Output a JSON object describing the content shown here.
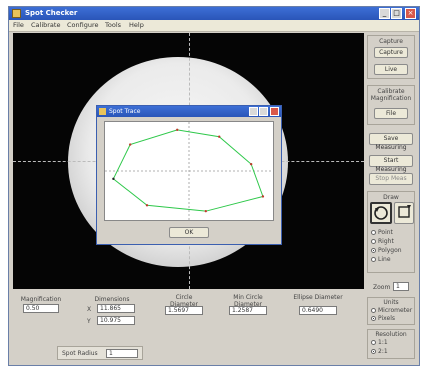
{
  "window": {
    "title": "Spot Checker"
  },
  "menu": [
    "File",
    "Calibrate",
    "Configure",
    "Tools",
    "Help"
  ],
  "dialog": {
    "title": "Spot Trace",
    "ok_label": "OK"
  },
  "polygon_series": {
    "name": "",
    "points": [
      [
        0.05,
        0.58
      ],
      [
        0.15,
        0.23
      ],
      [
        0.43,
        0.08
      ],
      [
        0.68,
        0.15
      ],
      [
        0.87,
        0.43
      ],
      [
        0.94,
        0.76
      ],
      [
        0.6,
        0.91
      ],
      [
        0.25,
        0.85
      ]
    ]
  },
  "right_panel": {
    "capture_label": "Capture",
    "capture_btn": "Capture",
    "live_btn": "Live",
    "calibrate_label": "Calibrate Magnification",
    "file_btn": "File",
    "save_measuring_btn": "Save Measuring",
    "start_measuring_btn": "Start Measuring",
    "stop_btn": "Stop Meas",
    "shape_label": "Draw",
    "radio_options": [
      "Point",
      "Right",
      "Polygon",
      "Line"
    ],
    "radio_selected": 2,
    "zoom_label": "Zoom",
    "zoom_value": "1",
    "units_label": "Units",
    "units_options": [
      "Micrometer",
      "Pixels"
    ],
    "units_selected": 1,
    "resolution_label": "Resolution",
    "resolution_options": [
      "1:1",
      "2:1"
    ]
  },
  "bottom": {
    "magnification_label": "Magnification",
    "magnification_value": "0.50",
    "dimensions_label": "Dimensions",
    "dim_x_label": "X",
    "dim_x_value": "11.865",
    "dim_y_label": "Y",
    "dim_y_value": "10.975",
    "diameter_label": "Circle Diameter",
    "diameter_value": "1.5697",
    "min_circle_label": "Min Circle Diameter",
    "min_circle_value": "1.2587",
    "ellipse_label": "Ellipse Diameter",
    "ellipse_value": "0.6490",
    "spot_radius_label": "Spot Radius",
    "spot_radius_value": "1"
  }
}
